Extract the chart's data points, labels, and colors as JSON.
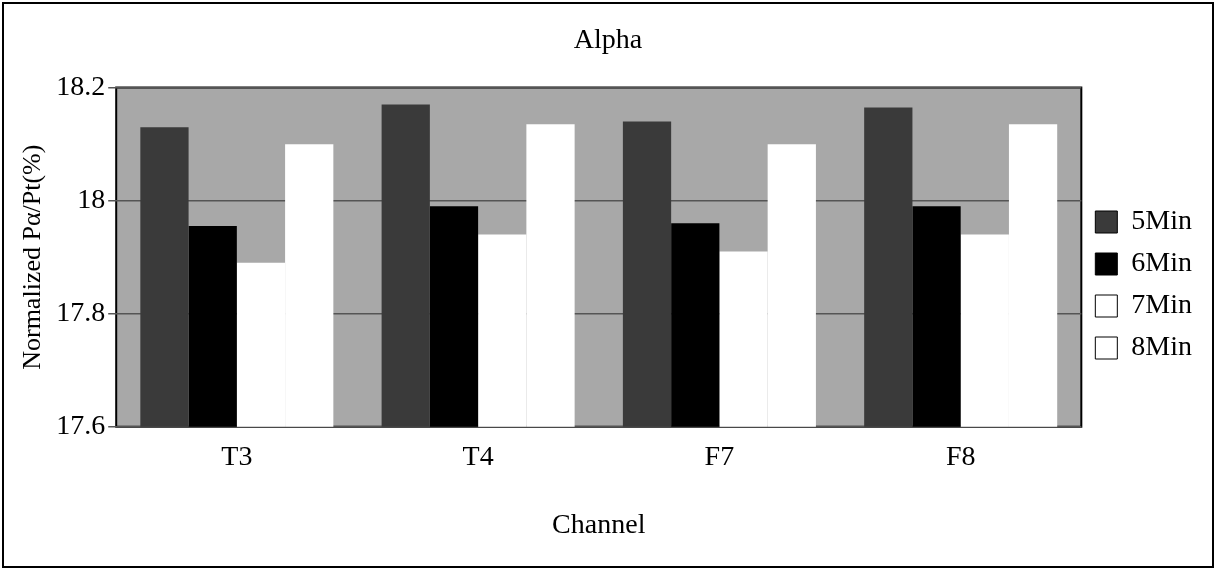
{
  "chart_data": {
    "type": "bar",
    "title": "Alpha",
    "xlabel": "Channel",
    "ylabel": "Normalized Pα/Pt(%)",
    "categories": [
      "T3",
      "T4",
      "F7",
      "F8"
    ],
    "series": [
      {
        "name": "5Min",
        "color": "#3a3a3a",
        "values": [
          18.13,
          18.17,
          18.14,
          18.165
        ]
      },
      {
        "name": "6Min",
        "color": "#000000",
        "values": [
          17.955,
          17.99,
          17.96,
          17.99
        ]
      },
      {
        "name": "7Min",
        "color": "#ffffff",
        "values": [
          17.89,
          17.94,
          17.91,
          17.94
        ]
      },
      {
        "name": "8Min",
        "color": "#ffffff",
        "values": [
          18.1,
          18.135,
          18.1,
          18.135
        ]
      }
    ],
    "ylim": [
      17.6,
      18.2
    ],
    "yticks": [
      17.6,
      17.8,
      18,
      18.2
    ],
    "grid": "y",
    "legend": "right"
  }
}
